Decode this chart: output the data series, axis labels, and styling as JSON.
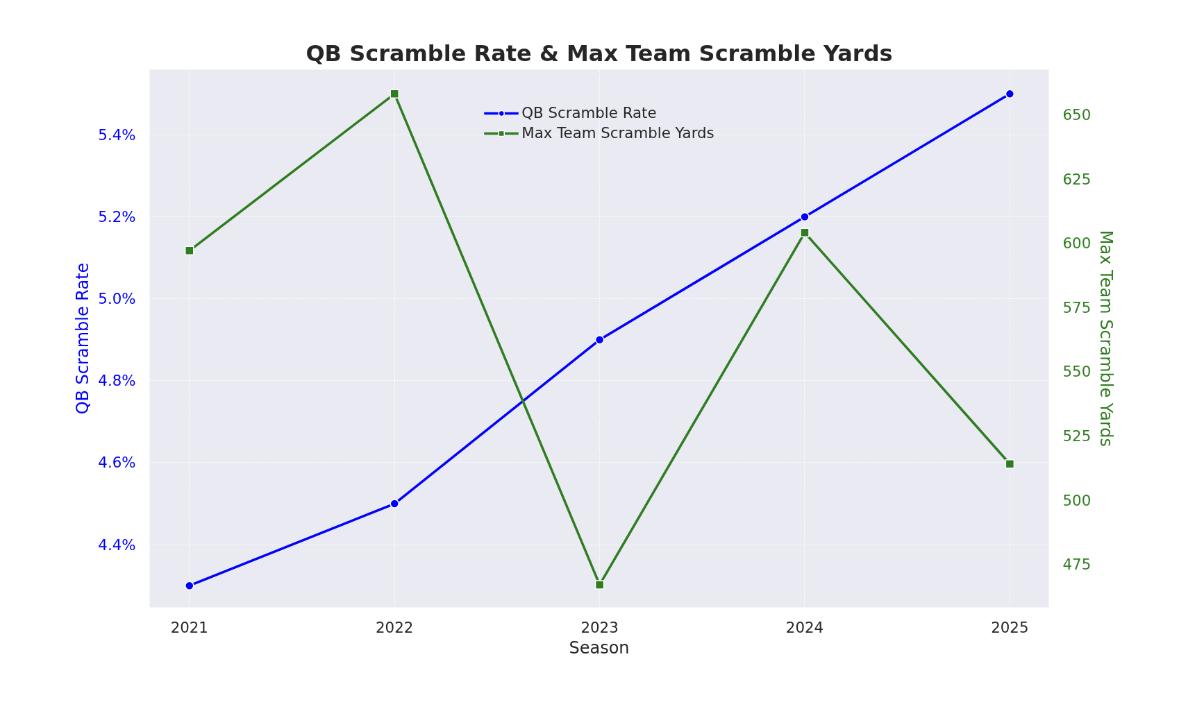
{
  "chart_data": {
    "type": "line",
    "title": "QB Scramble Rate & Max Team Scramble Yards",
    "xlabel": "Season",
    "ylabel": "QB Scramble Rate",
    "y2label": "Max Team Scramble Yards",
    "x": [
      2021,
      2022,
      2023,
      2024,
      2025
    ],
    "xlim": [
      2020.806,
      2025.19
    ],
    "xticks": [
      2021,
      2022,
      2023,
      2024,
      2025
    ],
    "ylim": [
      4.247,
      5.559
    ],
    "yticks": [
      {
        "value": 4.4,
        "label": "4.4%"
      },
      {
        "value": 4.6,
        "label": "4.6%"
      },
      {
        "value": 4.8,
        "label": "4.8%"
      },
      {
        "value": 5.0,
        "label": "5.0%"
      },
      {
        "value": 5.2,
        "label": "5.2%"
      },
      {
        "value": 5.4,
        "label": "5.4%"
      }
    ],
    "y2lim": [
      458.2,
      667.4
    ],
    "y2ticks": [
      475,
      500,
      525,
      550,
      575,
      600,
      625,
      650
    ],
    "series": [
      {
        "name": "QB Scramble Rate",
        "color": "#0000ff",
        "marker": "circle",
        "values": [
          4.3,
          4.5,
          4.9,
          5.2,
          5.5
        ]
      },
      {
        "name": "Max Team Scramble Yards",
        "color": "#2f7d20",
        "marker": "square",
        "axis": "y2",
        "values": [
          597,
          658,
          467,
          604,
          514
        ]
      }
    ],
    "grid": true,
    "legend": "top",
    "line_style": "solid"
  }
}
